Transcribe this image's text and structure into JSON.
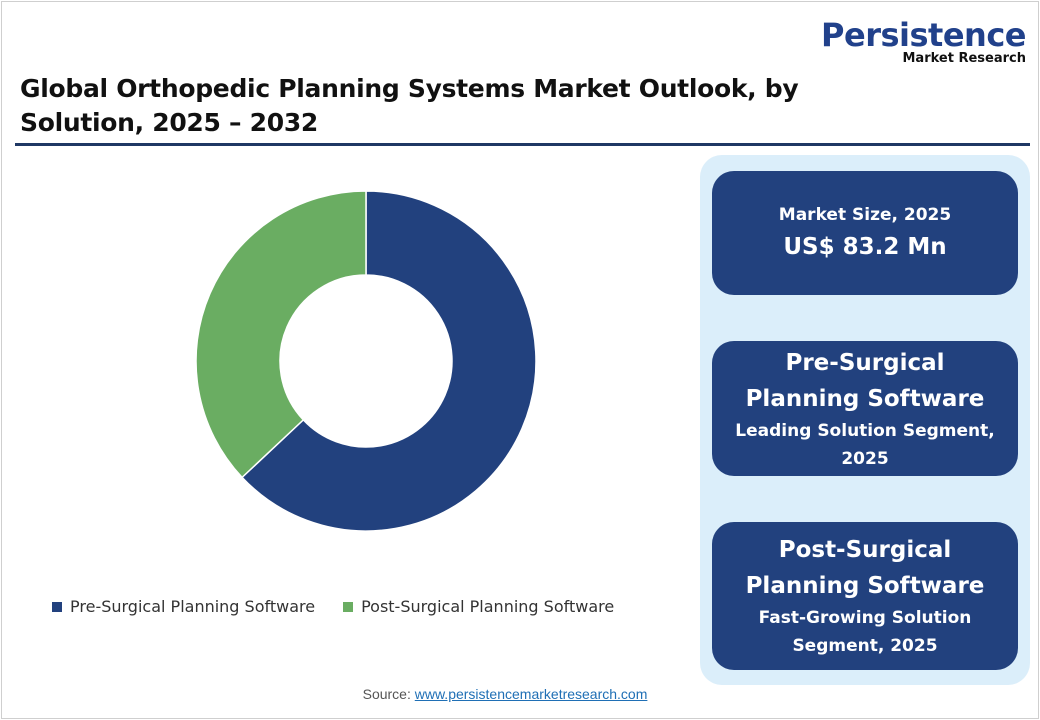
{
  "logo": {
    "line1": "Persistence",
    "line2": "Market Research"
  },
  "title": "Global Orthopedic Planning Systems Market Outlook, by Solution, 2025 – 2032",
  "chart_data": {
    "type": "pie",
    "style": "donut",
    "categories": [
      "Pre-Surgical Planning Software",
      "Post-Surgical Planning Software"
    ],
    "values": [
      63,
      37
    ],
    "unit": "%",
    "colors": [
      "#22417e",
      "#6aad62"
    ],
    "legend_position": "bottom"
  },
  "cards": [
    {
      "label": "Market Size, 2025",
      "value": "US$ 83.2 Mn"
    },
    {
      "title": "Pre-Surgical Planning Software",
      "subtitle": "Leading Solution Segment, 2025"
    },
    {
      "title": "Post-Surgical Planning Software",
      "subtitle": "Fast-Growing Solution Segment, 2025"
    }
  ],
  "source": {
    "label": "Source:",
    "link": "www.persistencemarketresearch.com"
  }
}
